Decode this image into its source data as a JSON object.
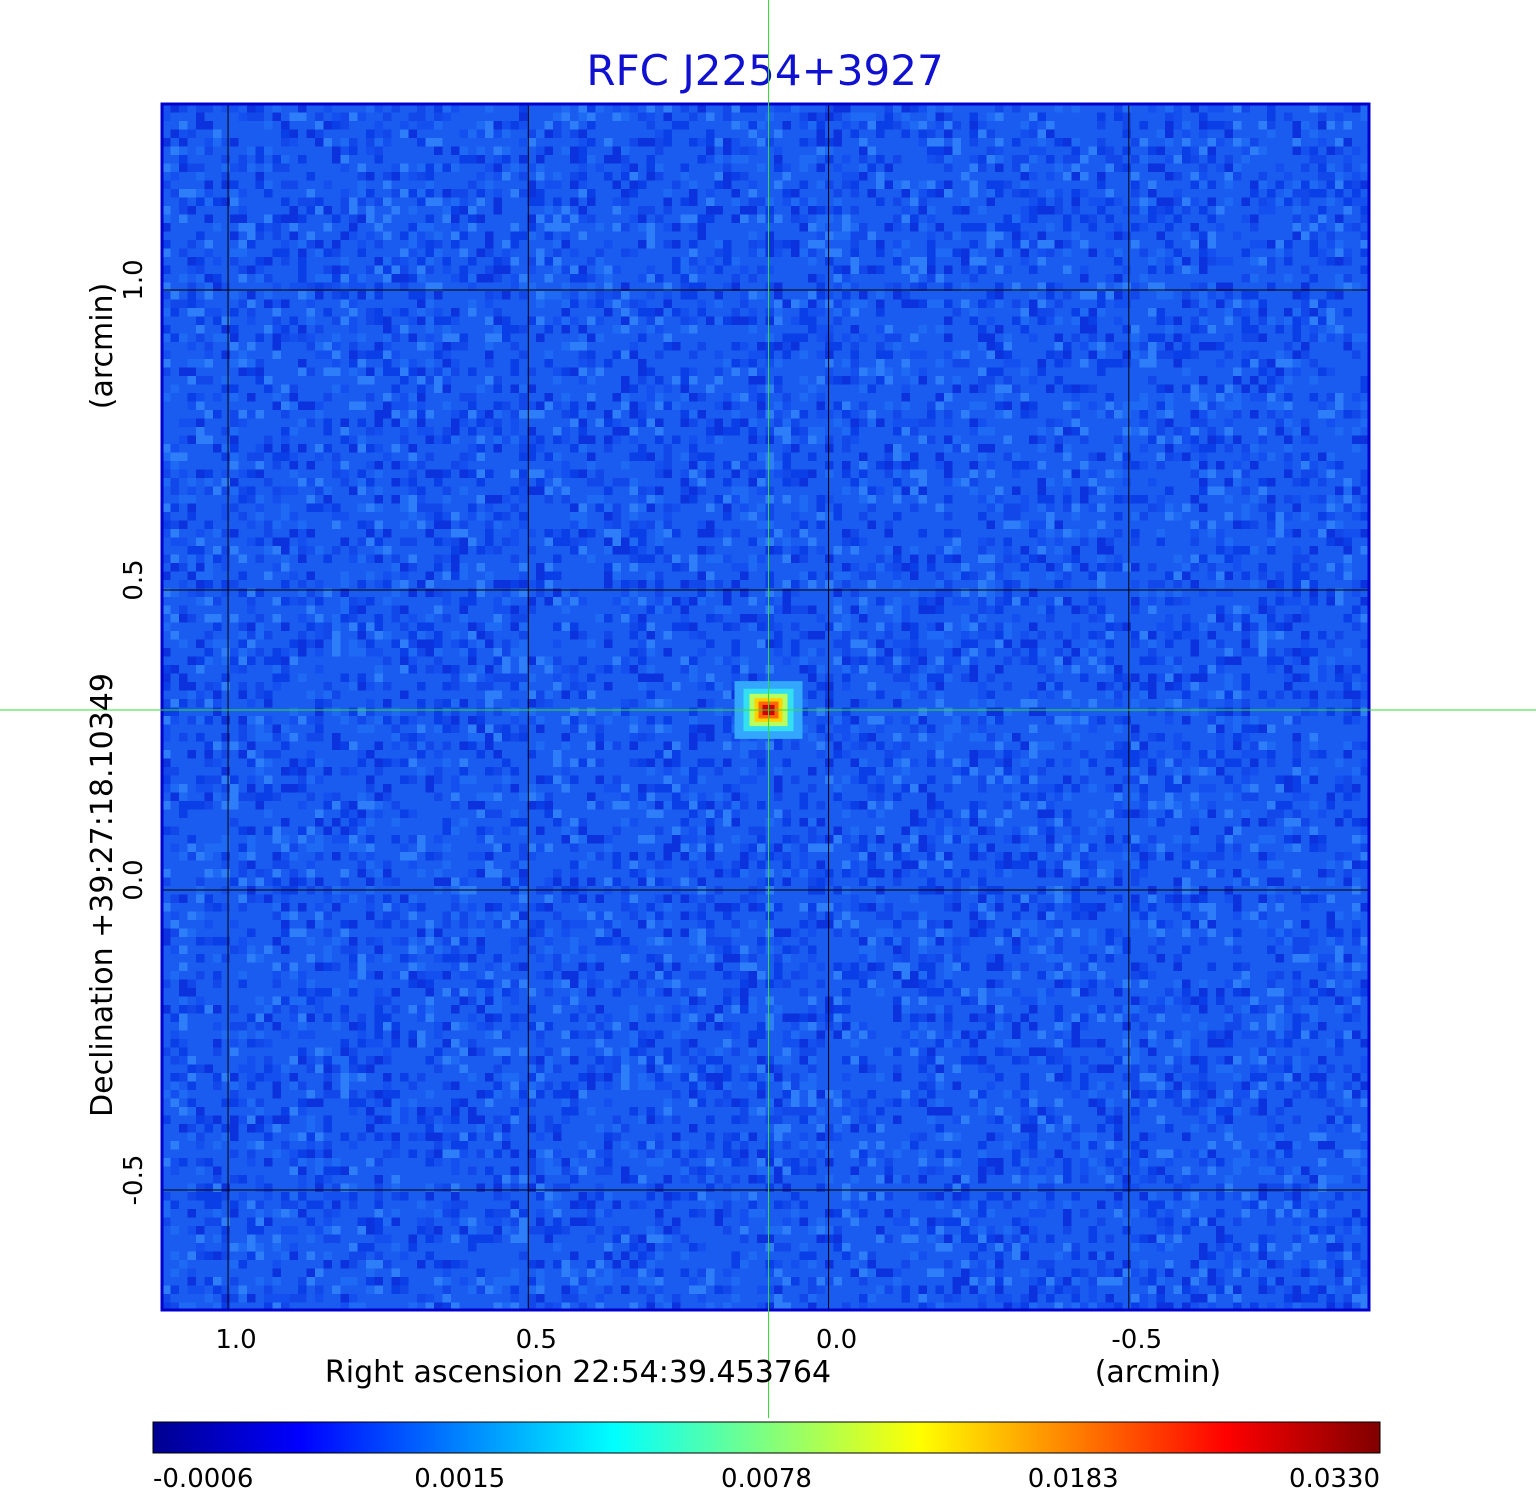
{
  "plot": {
    "title": "RFC J2254+3927",
    "xlabel": "Right ascension  22:54:39.453764",
    "xunit": "(arcmin)",
    "ylabel": "Declination  +39:27:18.10349",
    "yunit": "(arcmin)",
    "x_ticks": [
      "1.0",
      "0.5",
      "0.0",
      "-0.5"
    ],
    "y_ticks": [
      "1.0",
      "0.5",
      "0.0",
      "-0.5"
    ],
    "x_tick_values": [
      1.0,
      0.5,
      0.0,
      -0.5
    ],
    "y_tick_values": [
      1.0,
      0.5,
      0.0,
      -0.5
    ],
    "x_range": [
      1.11,
      -0.9
    ],
    "y_range": [
      -0.7,
      1.31
    ],
    "crosshair": {
      "x": 0.1,
      "y": 0.3
    },
    "source": {
      "x": 0.1,
      "y": 0.3
    }
  },
  "colorbar": {
    "labels": [
      "-0.0006",
      "0.0015",
      "0.0078",
      "0.0183",
      "0.0330"
    ],
    "colors": [
      "#00008f",
      "#0000ff",
      "#00ffff",
      "#ffff00",
      "#ff0000",
      "#800000"
    ]
  },
  "colors": {
    "title": "#1010d0",
    "frame": "#0000cc",
    "background_map": "#1a5cf0",
    "grid": "#000000",
    "crosshair": "#33dd33"
  }
}
